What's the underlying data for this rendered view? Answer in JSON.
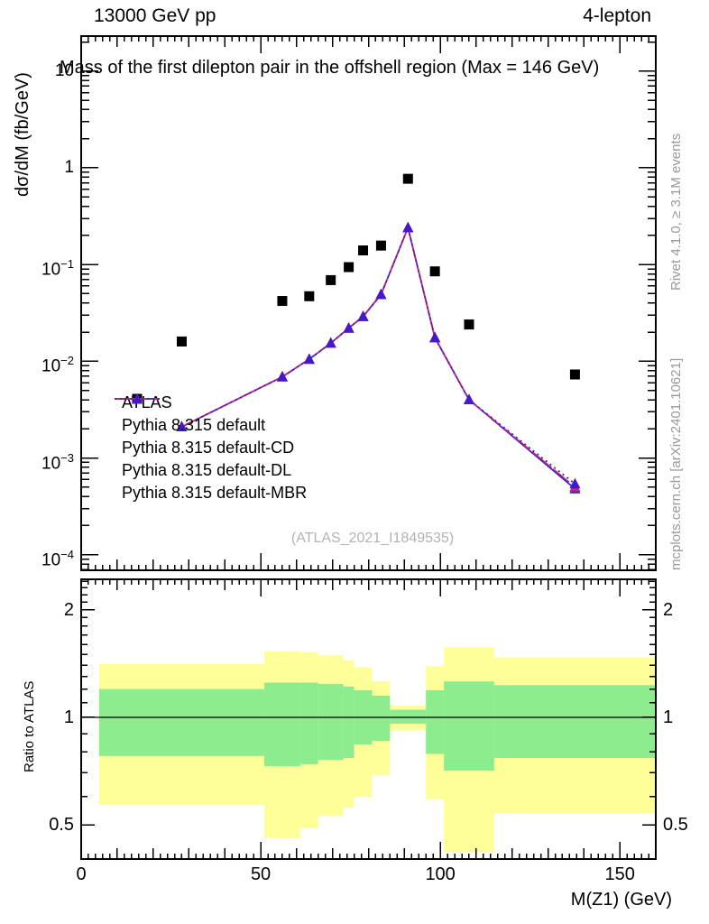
{
  "header": {
    "left": "13000 GeV pp",
    "right": "4-lepton"
  },
  "side_notes": {
    "top_rotated": "Rivet 4.1.0, ≥ 3.1M events",
    "bottom_rotated": "mcplots.cern.ch [arXiv:2401.10621]"
  },
  "watermark": "(ATLAS_2021_I1849535)",
  "colors": {
    "atlas": "#000000",
    "pythia_default": "#2222ee",
    "pythia_cd": "#b01848",
    "pythia_dl": "#c02878",
    "pythia_mbr": "#4418cc",
    "band_yellow": "#ffff99",
    "band_green": "#8dec8d"
  },
  "chart_data": {
    "type": "line",
    "title": "Mass of the first dilepton pair in the offshell region (Max = 146 GeV)",
    "xlabel": "M(Z1) (GeV)",
    "ylabel": "dσ/dM (fb/GeV)",
    "ratio_ylabel": "Ratio to ATLAS",
    "xlim": [
      0,
      160
    ],
    "main_ylim": [
      6.9e-05,
      23
    ],
    "ratio_ylim": [
      0.402,
      2.43
    ],
    "x_major_ticks": [
      0,
      50,
      100,
      150
    ],
    "main_y_ticks": [
      {
        "label": "10",
        "v": 10
      },
      {
        "label": "1",
        "v": 1
      },
      {
        "label": "10^-1",
        "v": 0.1
      },
      {
        "label": "10^-2",
        "v": 0.01
      },
      {
        "label": "10^-3",
        "v": 0.001
      },
      {
        "label": "10^-4",
        "v": 0.0001
      }
    ],
    "ratio_y_ticks": [
      {
        "label": "2",
        "v": 2
      },
      {
        "label": "1",
        "v": 1
      },
      {
        "label": "0.5",
        "v": 0.5
      }
    ],
    "bin_edges": [
      5,
      51,
      61,
      66,
      73,
      76,
      81,
      86,
      96,
      101,
      115,
      160
    ],
    "series": [
      {
        "name": "ATLAS",
        "kind": "points",
        "marker": "square",
        "color": "#000000",
        "x": [
          28,
          56,
          63.5,
          69.5,
          74.5,
          78.5,
          83.5,
          91,
          98.5,
          108,
          137.5
        ],
        "y": [
          0.016,
          0.042,
          0.047,
          0.069,
          0.094,
          0.14,
          0.157,
          0.77,
          0.085,
          0.024,
          0.0073
        ]
      },
      {
        "name": "Pythia 8.315 default",
        "kind": "line+points",
        "marker": "triangle",
        "color": "#2222ee",
        "linestyle": "solid",
        "x": [
          28,
          56,
          63.5,
          69.5,
          74.5,
          78.5,
          83.5,
          91,
          98.5,
          108,
          137.5
        ],
        "y": [
          0.0021,
          0.0069,
          0.0105,
          0.0154,
          0.022,
          0.029,
          0.049,
          0.24,
          0.0175,
          0.004,
          0.00048
        ]
      },
      {
        "name": "Pythia 8.315 default-CD",
        "kind": "line+points",
        "marker": "triangle",
        "color": "#b01848",
        "linestyle": "dashdot",
        "x": [
          28,
          56,
          63.5,
          69.5,
          74.5,
          78.5,
          83.5,
          91,
          98.5,
          108,
          137.5
        ],
        "y": [
          0.0021,
          0.0069,
          0.0105,
          0.0154,
          0.022,
          0.029,
          0.049,
          0.24,
          0.0175,
          0.004,
          0.0005
        ]
      },
      {
        "name": "Pythia 8.315 default-DL",
        "kind": "line+points",
        "marker": "triangle",
        "color": "#c02878",
        "linestyle": "dashed",
        "x": [
          28,
          56,
          63.5,
          69.5,
          74.5,
          78.5,
          83.5,
          91,
          98.5,
          108,
          137.5
        ],
        "y": [
          0.0021,
          0.0069,
          0.0105,
          0.0154,
          0.022,
          0.029,
          0.049,
          0.24,
          0.0175,
          0.004,
          0.0005
        ]
      },
      {
        "name": "Pythia 8.315 default-MBR",
        "kind": "line+points",
        "marker": "triangle",
        "color": "#4418cc",
        "linestyle": "dotted",
        "x": [
          28,
          56,
          63.5,
          69.5,
          74.5,
          78.5,
          83.5,
          91,
          98.5,
          108,
          137.5
        ],
        "y": [
          0.0021,
          0.0069,
          0.0105,
          0.0154,
          0.022,
          0.029,
          0.049,
          0.24,
          0.0175,
          0.004,
          0.00054
        ]
      }
    ],
    "ratio_reference_line": 1,
    "ratio_bands": [
      {
        "x0": 5,
        "x1": 51,
        "yellow": [
          0.57,
          1.41
        ],
        "green": [
          0.78,
          1.2
        ]
      },
      {
        "x0": 51,
        "x1": 61,
        "yellow": [
          0.46,
          1.53
        ],
        "green": [
          0.73,
          1.25
        ]
      },
      {
        "x0": 61,
        "x1": 66,
        "yellow": [
          0.49,
          1.52
        ],
        "green": [
          0.74,
          1.25
        ]
      },
      {
        "x0": 66,
        "x1": 73,
        "yellow": [
          0.53,
          1.49
        ],
        "green": [
          0.76,
          1.24
        ]
      },
      {
        "x0": 73,
        "x1": 76,
        "yellow": [
          0.56,
          1.44
        ],
        "green": [
          0.77,
          1.22
        ]
      },
      {
        "x0": 76,
        "x1": 81,
        "yellow": [
          0.6,
          1.38
        ],
        "green": [
          0.84,
          1.19
        ]
      },
      {
        "x0": 81,
        "x1": 86,
        "yellow": [
          0.69,
          1.26
        ],
        "green": [
          0.86,
          1.15
        ]
      },
      {
        "x0": 86,
        "x1": 96,
        "yellow": [
          0.92,
          1.08
        ],
        "green": [
          0.96,
          1.05
        ]
      },
      {
        "x0": 96,
        "x1": 101,
        "yellow": [
          0.59,
          1.39
        ],
        "green": [
          0.79,
          1.19
        ]
      },
      {
        "x0": 101,
        "x1": 115,
        "yellow": [
          0.42,
          1.57
        ],
        "green": [
          0.71,
          1.26
        ]
      },
      {
        "x0": 115,
        "x1": 160,
        "yellow": [
          0.54,
          1.47
        ],
        "green": [
          0.77,
          1.23
        ]
      }
    ]
  }
}
